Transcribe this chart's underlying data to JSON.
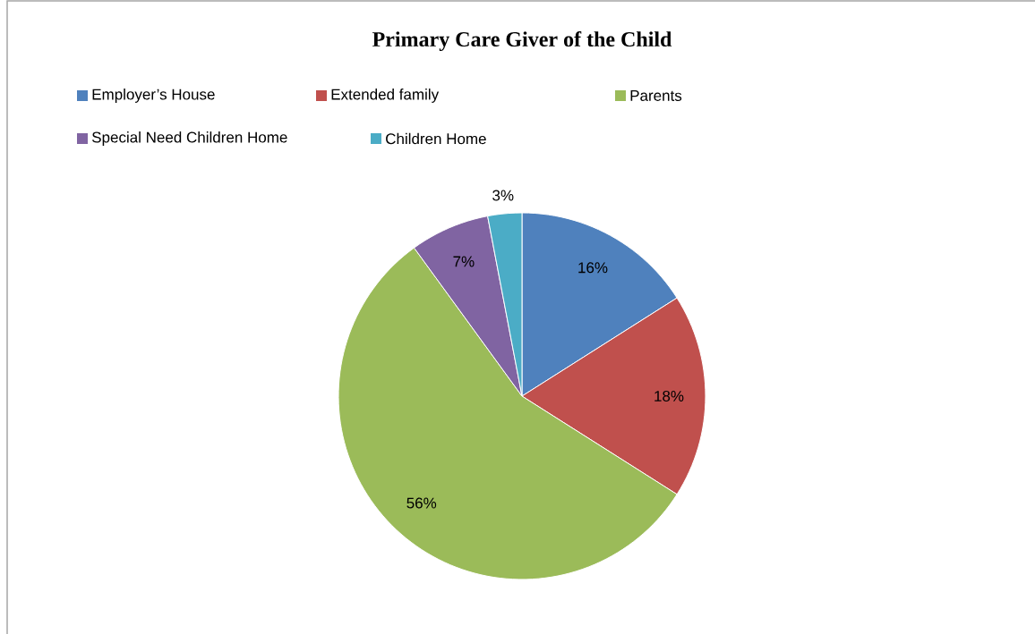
{
  "chart_data": {
    "type": "pie",
    "title": "Primary Care Giver of the Child",
    "categories": [
      "Employer’s House",
      "Extended family",
      "Parents",
      "Special Need Children Home",
      "Children Home"
    ],
    "values": [
      16,
      18,
      56,
      7,
      3
    ],
    "colors": [
      "#4f81bd",
      "#c0504d",
      "#9bbb59",
      "#8064a2",
      "#4bacc6"
    ],
    "value_labels": [
      "16%",
      "18%",
      "56%",
      "7%",
      "3%"
    ],
    "legend": "top"
  }
}
